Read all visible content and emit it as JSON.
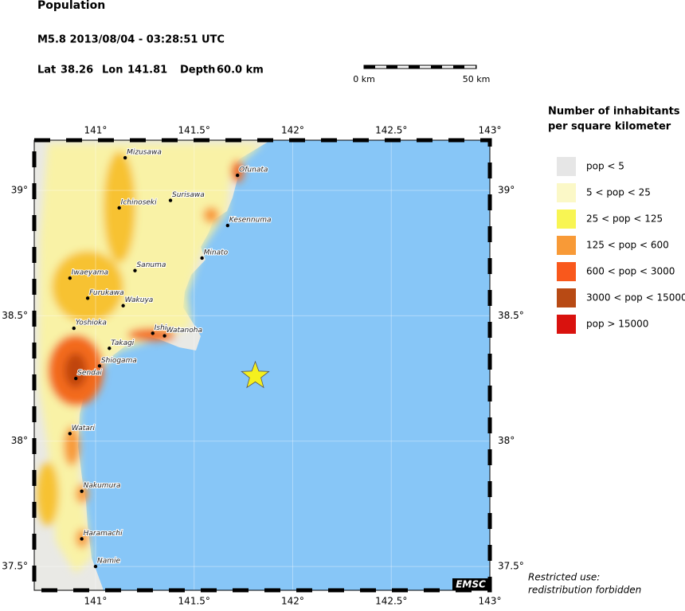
{
  "header": {
    "title": "Population",
    "event": "M5.8  2013/08/04 - 03:28:51 UTC",
    "lat_label": "Lat",
    "lat": 38.26,
    "lon_label": "Lon",
    "lon": 141.81,
    "depth_label": "Depth",
    "depth": "60.0 km"
  },
  "scale_bar": {
    "start": "0 km",
    "end": "50 km"
  },
  "map": {
    "xlim": [
      140.689,
      143
    ],
    "ylim": [
      37.405,
      39.2
    ],
    "xticks": [
      {
        "value": 141,
        "label": "141°"
      },
      {
        "value": 141.5,
        "label": "141.5°"
      },
      {
        "value": 142,
        "label": "142°"
      },
      {
        "value": 142.5,
        "label": "142.5°"
      },
      {
        "value": 143,
        "label": "143°"
      }
    ],
    "yticks": [
      {
        "value": 37.5,
        "label": "37.5°"
      },
      {
        "value": 38,
        "label": "38°"
      },
      {
        "value": 38.5,
        "label": "38.5°"
      },
      {
        "value": 39,
        "label": "39°"
      }
    ],
    "sea_color": "#87c6f7",
    "cities": [
      {
        "name": "Mizusawa",
        "lon": 141.15,
        "lat": 39.13
      },
      {
        "name": "Ofunata",
        "lon": 141.72,
        "lat": 39.06
      },
      {
        "name": "Surisawa",
        "lon": 141.38,
        "lat": 38.96
      },
      {
        "name": "Ichinoseki",
        "lon": 141.12,
        "lat": 38.93
      },
      {
        "name": "Kesennuma",
        "lon": 141.67,
        "lat": 38.86
      },
      {
        "name": "Minato",
        "lon": 141.54,
        "lat": 38.73
      },
      {
        "name": "Sanuma",
        "lon": 141.2,
        "lat": 38.68
      },
      {
        "name": "Iwaeyama",
        "lon": 140.87,
        "lat": 38.65
      },
      {
        "name": "Furukawa",
        "lon": 140.96,
        "lat": 38.57
      },
      {
        "name": "Wakuya",
        "lon": 141.14,
        "lat": 38.54
      },
      {
        "name": "Yoshioka",
        "lon": 140.89,
        "lat": 38.45
      },
      {
        "name": "Ishi",
        "lon": 141.29,
        "lat": 38.43
      },
      {
        "name": "Watanoha",
        "lon": 141.35,
        "lat": 38.42
      },
      {
        "name": "Takagi",
        "lon": 141.07,
        "lat": 38.37
      },
      {
        "name": "Shiogama",
        "lon": 141.02,
        "lat": 38.3
      },
      {
        "name": "Sendai",
        "lon": 140.9,
        "lat": 38.25
      },
      {
        "name": "Watari",
        "lon": 140.87,
        "lat": 38.03
      },
      {
        "name": "Nakumura",
        "lon": 140.93,
        "lat": 37.8
      },
      {
        "name": "Haramachi",
        "lon": 140.93,
        "lat": 37.61
      },
      {
        "name": "Namie",
        "lon": 141.0,
        "lat": 37.5
      }
    ],
    "epicenter_color": "#f5f01e",
    "credit": "EMSC"
  },
  "legend": {
    "title_line1": "Number of inhabitants",
    "title_line2": "per square kilometer",
    "entries": [
      {
        "label": "pop < 5",
        "color": "#e6e6e6"
      },
      {
        "label": "5 < pop < 25",
        "color": "#fbf8c7"
      },
      {
        "label": "25 < pop < 125",
        "color": "#f8f553"
      },
      {
        "label": "125 < pop < 600",
        "color": "#f89a37"
      },
      {
        "label": "600 < pop < 3000",
        "color": "#f9581c"
      },
      {
        "label": "3000 < pop < 15000",
        "color": "#b84a14"
      },
      {
        "label": "pop > 15000",
        "color": "#d9120e"
      }
    ]
  },
  "footer": {
    "line1": "Restricted use:",
    "line2": "redistribution forbidden"
  }
}
